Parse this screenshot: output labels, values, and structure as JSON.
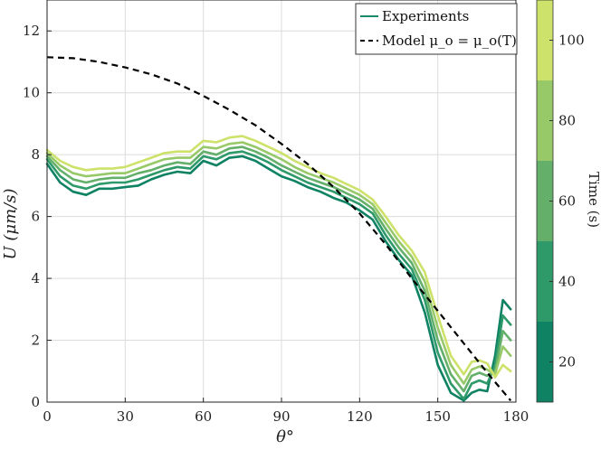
{
  "chart_data": {
    "type": "line",
    "xlabel": "θ°",
    "ylabel": "U (μm/s)",
    "xlim": [
      0,
      180
    ],
    "ylim": [
      0,
      13
    ],
    "xticks": [
      0,
      30,
      60,
      90,
      120,
      150,
      180
    ],
    "yticks": [
      0,
      2,
      4,
      6,
      8,
      10,
      12
    ],
    "xtick_labels": [
      "0",
      "30",
      "60",
      "90",
      "120",
      "150",
      "180"
    ],
    "ytick_labels": [
      "0",
      "2",
      "4",
      "6",
      "8",
      "10",
      "12"
    ],
    "grid": true,
    "legend": {
      "position": "top-right",
      "entries": [
        {
          "label": "Experiments",
          "style": "solid",
          "color": "#1a8a6a"
        },
        {
          "label": "Model μ_o = μ_o(T)",
          "style": "dashed",
          "color": "#000000"
        }
      ]
    },
    "x": [
      0,
      5,
      10,
      15,
      20,
      25,
      30,
      35,
      40,
      45,
      50,
      55,
      60,
      65,
      70,
      75,
      80,
      85,
      90,
      95,
      100,
      105,
      110,
      115,
      120,
      125,
      130,
      135,
      140,
      145,
      150,
      155,
      160,
      163,
      166,
      169,
      172,
      175,
      178
    ],
    "series": [
      {
        "name": "t=20 s",
        "color": "#0e8262",
        "values": [
          7.7,
          7.1,
          6.8,
          6.7,
          6.9,
          6.9,
          6.95,
          7.0,
          7.2,
          7.35,
          7.45,
          7.4,
          7.8,
          7.65,
          7.9,
          7.95,
          7.8,
          7.55,
          7.3,
          7.15,
          6.95,
          6.8,
          6.6,
          6.45,
          6.2,
          5.9,
          5.2,
          4.6,
          4.1,
          2.9,
          1.2,
          0.3,
          0.05,
          0.3,
          0.4,
          0.35,
          1.5,
          3.3,
          3.0
        ]
      },
      {
        "name": "t=40 s",
        "color": "#2e9a6a",
        "values": [
          7.85,
          7.3,
          7.0,
          6.9,
          7.05,
          7.1,
          7.1,
          7.2,
          7.35,
          7.5,
          7.6,
          7.55,
          7.95,
          7.85,
          8.05,
          8.1,
          7.95,
          7.75,
          7.5,
          7.3,
          7.1,
          6.95,
          6.8,
          6.6,
          6.4,
          6.1,
          5.4,
          4.8,
          4.3,
          3.3,
          1.6,
          0.6,
          0.1,
          0.6,
          0.7,
          0.6,
          1.2,
          2.8,
          2.5
        ]
      },
      {
        "name": "t=60 s",
        "color": "#64b06a",
        "values": [
          7.95,
          7.5,
          7.2,
          7.1,
          7.2,
          7.25,
          7.25,
          7.4,
          7.5,
          7.65,
          7.75,
          7.7,
          8.1,
          8.0,
          8.2,
          8.25,
          8.1,
          7.9,
          7.65,
          7.45,
          7.25,
          7.1,
          6.95,
          6.75,
          6.55,
          6.25,
          5.6,
          5.0,
          4.5,
          3.6,
          2.0,
          0.9,
          0.35,
          0.85,
          0.95,
          0.85,
          1.0,
          2.3,
          2.0
        ]
      },
      {
        "name": "t=80 s",
        "color": "#98c968",
        "values": [
          8.05,
          7.65,
          7.4,
          7.3,
          7.35,
          7.4,
          7.4,
          7.55,
          7.7,
          7.85,
          7.9,
          7.9,
          8.25,
          8.2,
          8.35,
          8.4,
          8.25,
          8.05,
          7.85,
          7.6,
          7.4,
          7.25,
          7.1,
          6.9,
          6.7,
          6.4,
          5.8,
          5.2,
          4.7,
          3.9,
          2.4,
          1.2,
          0.6,
          1.05,
          1.15,
          1.05,
          0.9,
          1.8,
          1.5
        ]
      },
      {
        "name": "t=100 s",
        "color": "#cde26a",
        "values": [
          8.15,
          7.8,
          7.6,
          7.5,
          7.55,
          7.55,
          7.6,
          7.75,
          7.9,
          8.05,
          8.1,
          8.1,
          8.45,
          8.4,
          8.55,
          8.6,
          8.45,
          8.25,
          8.05,
          7.8,
          7.6,
          7.4,
          7.25,
          7.05,
          6.85,
          6.55,
          6.0,
          5.4,
          4.9,
          4.2,
          2.8,
          1.5,
          0.9,
          1.3,
          1.35,
          1.25,
          0.8,
          1.2,
          1.0
        ]
      }
    ],
    "model": {
      "name": "Model μ_o = μ_o(T)",
      "x": [
        0,
        10,
        20,
        30,
        40,
        50,
        60,
        70,
        80,
        90,
        100,
        110,
        120,
        130,
        140,
        150,
        160,
        170,
        178
      ],
      "values": [
        11.15,
        11.12,
        11.0,
        10.82,
        10.6,
        10.3,
        9.9,
        9.45,
        8.95,
        8.35,
        7.7,
        6.95,
        6.1,
        5.1,
        4.0,
        2.95,
        1.9,
        0.85,
        0.05
      ]
    },
    "colorbar": {
      "label": "Time (s)",
      "range": [
        10,
        110
      ],
      "ticks": [
        20,
        40,
        60,
        80,
        100
      ],
      "tick_labels": [
        "20",
        "40",
        "60",
        "80",
        "100"
      ],
      "bands": [
        {
          "from": 10,
          "to": 30,
          "color": "#0e8262"
        },
        {
          "from": 30,
          "to": 50,
          "color": "#2e9a6a"
        },
        {
          "from": 50,
          "to": 70,
          "color": "#64b06a"
        },
        {
          "from": 70,
          "to": 90,
          "color": "#98c968"
        },
        {
          "from": 90,
          "to": 110,
          "color": "#cde26a"
        }
      ]
    }
  }
}
